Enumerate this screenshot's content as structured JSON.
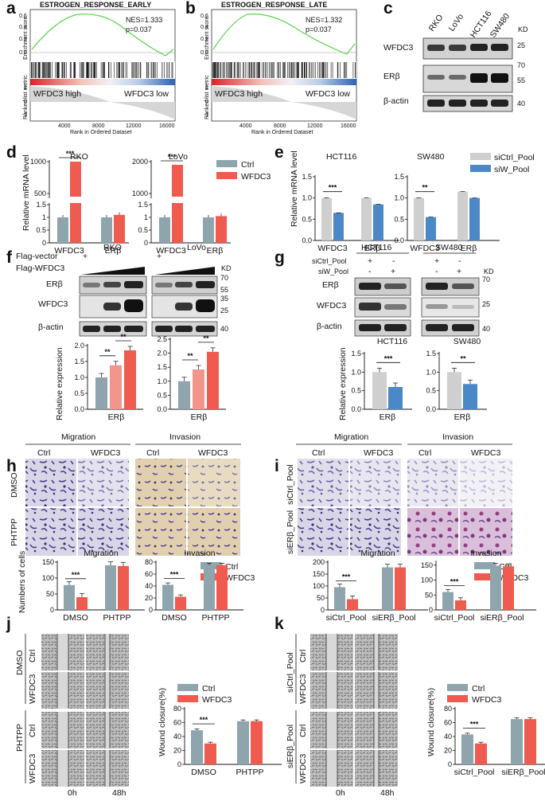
{
  "panels": {
    "a": "a",
    "b": "b",
    "c": "c",
    "d": "d",
    "e": "e",
    "f": "f",
    "g": "g",
    "h": "h",
    "i": "i",
    "j": "j",
    "k": "k"
  },
  "colors": {
    "ctrl": "#8fa5ad",
    "wfdc3": "#ef5b4f",
    "sictrl": "#cfcfcf",
    "siw": "#4b88c8",
    "gsea": "#59d24a"
  },
  "gsea_a": {
    "title": "ESTROGEN_RESPONSE_EARLY",
    "nes": "NES=1.333",
    "p": "p=0.037",
    "ylabel": "Enrichment score",
    "ylabel2": "Ranked list metric",
    "high": "WFDC3 high",
    "low": "WFDC3 low",
    "xlabel": "Rank in Ordered Dataset",
    "ticks": [
      "4000",
      "8000",
      "12000",
      "16000"
    ],
    "yticks": [
      "0.6",
      "0.4",
      "0.2",
      "0.0"
    ],
    "rticks": [
      "1",
      "0",
      "-1"
    ]
  },
  "gsea_b": {
    "title": "ESTROGEN_RESPONSE_LATE",
    "nes": "NES=1.332",
    "p": "p=0.037",
    "ylabel": "Enrichment score",
    "ylabel2": "Ranked list metric",
    "high": "WFDC3 high",
    "low": "WFDC3 low",
    "xlabel": "Rank in Ordered Dataset",
    "ticks": [
      "4000",
      "8000",
      "12000",
      "16000"
    ],
    "yticks": [
      "0.6",
      "0.4",
      "0.2",
      "0.0"
    ],
    "rticks": [
      "1",
      "0",
      "-1"
    ]
  },
  "blot_c": {
    "lanes": [
      "RKO",
      "LoVo",
      "HCT116",
      "SW480"
    ],
    "rows": [
      "WFDC3",
      "ERβ",
      "β-actin"
    ],
    "kd": "KD",
    "markers": [
      "25",
      "70",
      "55",
      "40"
    ]
  },
  "d": {
    "ylabel": "Relative mRNA level",
    "legend": [
      "Ctrl",
      "WFDC3"
    ],
    "rko": {
      "title": "RKO",
      "cats": [
        "WFDC3",
        "ERβ"
      ],
      "ctrl": [
        1.0,
        1.0
      ],
      "wfdc3": [
        1000,
        1.1
      ],
      "yticks": [
        "0",
        "0.5",
        "1",
        "1.5",
        "500",
        "1000"
      ],
      "sig": "***"
    },
    "lovo": {
      "title": "LoVo",
      "cats": [
        "WFDC3",
        "ERβ"
      ],
      "ctrl": [
        1.0,
        1.0
      ],
      "wfdc3": [
        1900,
        1.05
      ],
      "yticks": [
        "0",
        "0.5",
        "1",
        "1.5",
        "1000",
        "2000"
      ],
      "sig": "***"
    }
  },
  "e": {
    "ylabel": "Relative mRNA level",
    "legend": [
      "siCtrl_Pool",
      "siW_Pool"
    ],
    "hct": {
      "title": "HCT116",
      "cats": [
        "WFDC3",
        "ERβ"
      ],
      "ctrl": [
        1.0,
        1.0
      ],
      "si": [
        0.65,
        0.85
      ],
      "yticks": [
        "0.0",
        "0.5",
        "1.0",
        "1.5"
      ],
      "sig": "***"
    },
    "sw": {
      "title": "SW480",
      "cats": [
        "WFDC3",
        "ERβ"
      ],
      "ctrl": [
        1.0,
        1.15
      ],
      "si": [
        0.55,
        1.0
      ],
      "yticks": [
        "0.0",
        "0.5",
        "1.0",
        "1.5"
      ],
      "sig": "**"
    }
  },
  "f": {
    "titles": [
      "RKO",
      "LoVo"
    ],
    "rows": [
      "Flag-vector",
      "Flag-WFDC3"
    ],
    "plus": "+",
    "blots": [
      "ERβ",
      "WFDC3",
      "β-actin"
    ],
    "kd": "KD",
    "markers": [
      "70",
      "55",
      "35",
      "25",
      "40"
    ],
    "ylabel": "Relative  expression",
    "cat": "ERβ",
    "rko": [
      1.0,
      1.38,
      1.85
    ],
    "lovo": [
      1.0,
      1.42,
      2.05
    ],
    "yticks_rko": [
      "0.0",
      "0.5",
      "1.0",
      "1.5",
      "2.0"
    ],
    "yticks_lovo": [
      "0.0",
      "0.5",
      "1.0",
      "1.5",
      "2.0",
      "2.5"
    ],
    "sig": [
      "**",
      "**"
    ]
  },
  "g": {
    "titles": [
      "HCT116",
      "SW480"
    ],
    "rows": [
      "siCtrl_Pool",
      "siW_Pool"
    ],
    "signs": [
      [
        "+",
        "-"
      ],
      [
        "-",
        "+"
      ]
    ],
    "blots": [
      "ERβ",
      "WFDC3",
      "β-actin"
    ],
    "kd": "KD",
    "markers": [
      "70",
      "25",
      "40"
    ],
    "ylabel": "Relative  expression",
    "cat": "ERβ",
    "hct": [
      1.0,
      0.6
    ],
    "sw": [
      1.0,
      0.68
    ],
    "yticks": [
      "0.0",
      "0.5",
      "1.0",
      "1.5"
    ],
    "sig": [
      "***",
      "**"
    ]
  },
  "h": {
    "groups": [
      "Migration",
      "Invasion"
    ],
    "cols": [
      "Ctrl",
      "WFDC3",
      "Ctrl",
      "WFDC3"
    ],
    "rows": [
      "DMSO",
      "PHTPP"
    ],
    "ylabel": "Numbers of  cells",
    "legend": [
      "Ctrl",
      "WFDC3"
    ],
    "mig": {
      "title": "Migration",
      "cats": [
        "DMSO",
        "PHTPP"
      ],
      "ctrl": [
        78,
        140
      ],
      "wfdc3": [
        40,
        138
      ],
      "yticks": [
        "0",
        "50",
        "100",
        "150"
      ],
      "sig": "***"
    },
    "inv": {
      "title": "Invasion",
      "cats": [
        "DMSO",
        "PHTPP"
      ],
      "ctrl": [
        42,
        75
      ],
      "wfdc3": [
        22,
        75
      ],
      "yticks": [
        "0",
        "20",
        "40",
        "60",
        "80"
      ],
      "sig": "***"
    }
  },
  "i": {
    "groups": [
      "Migration",
      "Invasion"
    ],
    "cols": [
      "Ctrl",
      "WFDC3",
      "Ctrl",
      "WFDC3"
    ],
    "rows": [
      "siCtrl_Pool",
      "siERβ_Pool"
    ],
    "legend": [
      "Ctrl",
      "WFDC3"
    ],
    "mig": {
      "title": "Migration",
      "cats": [
        "siCtrl_Pool",
        "siERβ_Pool"
      ],
      "ctrl": [
        95,
        178
      ],
      "wfdc3": [
        45,
        178
      ],
      "yticks": [
        "0",
        "50",
        "100",
        "150",
        "200"
      ],
      "sig": "***"
    },
    "inv": {
      "title": "Invasion",
      "cats": [
        "siCtrl_Pool",
        "siERβ_Pool"
      ],
      "ctrl": [
        60,
        148
      ],
      "wfdc3": [
        32,
        146
      ],
      "yticks": [
        "0",
        "50",
        "100",
        "150"
      ],
      "sig": "***"
    }
  },
  "j": {
    "outer": [
      "DMSO",
      "PHTPP"
    ],
    "inner": [
      "Ctrl",
      "WFDC3",
      "Ctrl",
      "WFDC3"
    ],
    "times": [
      "0h",
      "48h"
    ],
    "ylabel": "Wound closure(%)",
    "legend": [
      "Ctrl",
      "WFDC3"
    ],
    "cats": [
      "DMSO",
      "PHTPP"
    ],
    "ctrl": [
      49,
      62
    ],
    "wfdc3": [
      30,
      62
    ],
    "yticks": [
      "0",
      "20",
      "40",
      "60",
      "80"
    ],
    "sig": "***"
  },
  "k": {
    "outer": [
      "siCtrl_Pool",
      "siERβ_Pool"
    ],
    "inner": [
      "Ctrl",
      "WFDC3",
      "Ctrl",
      "WFDC3"
    ],
    "times": [
      "0h",
      "48h"
    ],
    "ylabel": "Wound closure(%)",
    "legend": [
      "Ctrl",
      "WFDC3"
    ],
    "cats": [
      "siCtrl_Pool",
      "siERβ_Pool"
    ],
    "ctrl": [
      43,
      65
    ],
    "wfdc3": [
      30,
      65
    ],
    "yticks": [
      "0",
      "20",
      "40",
      "60",
      "80"
    ],
    "sig": "***"
  }
}
